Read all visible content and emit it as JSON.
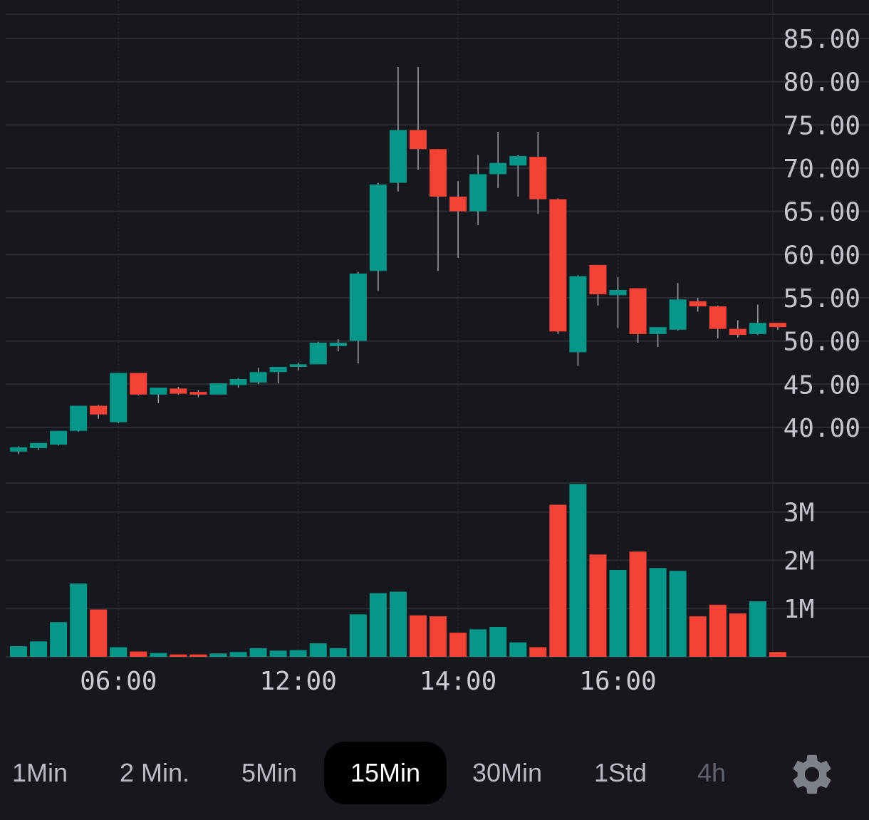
{
  "colors": {
    "background": "#17181d",
    "grid": "#2b2d33",
    "up": "#05968a",
    "down": "#f44336",
    "wick": "#9ea3aa",
    "axis_text": "#c3c6cc",
    "time_text": "#c9ccd2",
    "active_tab_bg": "#000000"
  },
  "chart_data": {
    "type": "candlestick",
    "price_axis": {
      "ylim": [
        33.4,
        87.8
      ],
      "ticks": [
        "85.00",
        "80.00",
        "75.00",
        "70.00",
        "65.00",
        "60.00",
        "55.00",
        "50.00",
        "45.00",
        "40.00"
      ]
    },
    "volume_axis": {
      "ylim": [
        0,
        3.6
      ],
      "ticks": [
        "3M",
        "2M",
        "1M"
      ]
    },
    "time_axis": {
      "ticks": [
        {
          "label": "06:00",
          "index": 5
        },
        {
          "label": "12:00",
          "index": 14
        },
        {
          "label": "14:00",
          "index": 22
        },
        {
          "label": "16:00",
          "index": 30
        }
      ]
    },
    "candles": [
      {
        "o": 37.2,
        "h": 37.8,
        "l": 36.9,
        "c": 37.7,
        "v": 0.22
      },
      {
        "o": 37.6,
        "h": 38.2,
        "l": 37.4,
        "c": 38.2,
        "v": 0.32
      },
      {
        "o": 38.0,
        "h": 39.6,
        "l": 37.9,
        "c": 39.6,
        "v": 0.72
      },
      {
        "o": 39.6,
        "h": 42.5,
        "l": 39.5,
        "c": 42.5,
        "v": 1.52
      },
      {
        "o": 42.5,
        "h": 42.6,
        "l": 41.0,
        "c": 41.5,
        "v": 0.98
      },
      {
        "o": 40.6,
        "h": 46.3,
        "l": 40.5,
        "c": 46.3,
        "v": 0.2
      },
      {
        "o": 46.3,
        "h": 46.3,
        "l": 43.7,
        "c": 43.8,
        "v": 0.11
      },
      {
        "o": 43.8,
        "h": 44.6,
        "l": 42.8,
        "c": 44.6,
        "v": 0.08
      },
      {
        "o": 44.5,
        "h": 44.7,
        "l": 43.8,
        "c": 43.9,
        "v": 0.05
      },
      {
        "o": 44.1,
        "h": 44.3,
        "l": 43.5,
        "c": 43.8,
        "v": 0.05
      },
      {
        "o": 43.8,
        "h": 45.1,
        "l": 43.8,
        "c": 45.1,
        "v": 0.07
      },
      {
        "o": 44.9,
        "h": 45.7,
        "l": 44.6,
        "c": 45.6,
        "v": 0.1
      },
      {
        "o": 45.2,
        "h": 46.9,
        "l": 45.0,
        "c": 46.4,
        "v": 0.18
      },
      {
        "o": 46.4,
        "h": 46.7,
        "l": 45.1,
        "c": 47.0,
        "v": 0.13
      },
      {
        "o": 47.0,
        "h": 47.5,
        "l": 46.6,
        "c": 47.3,
        "v": 0.14
      },
      {
        "o": 47.3,
        "h": 49.9,
        "l": 47.3,
        "c": 49.8,
        "v": 0.28
      },
      {
        "o": 49.4,
        "h": 50.2,
        "l": 48.8,
        "c": 49.8,
        "v": 0.18
      },
      {
        "o": 50.0,
        "h": 58.0,
        "l": 47.4,
        "c": 57.8,
        "v": 0.88
      },
      {
        "o": 58.1,
        "h": 68.3,
        "l": 55.8,
        "c": 68.1,
        "v": 1.32
      },
      {
        "o": 68.3,
        "h": 81.7,
        "l": 67.3,
        "c": 74.4,
        "v": 1.35
      },
      {
        "o": 74.4,
        "h": 81.7,
        "l": 69.8,
        "c": 72.2,
        "v": 0.86
      },
      {
        "o": 72.2,
        "h": 72.2,
        "l": 58.1,
        "c": 66.7,
        "v": 0.84
      },
      {
        "o": 66.7,
        "h": 68.5,
        "l": 59.6,
        "c": 65.0,
        "v": 0.5
      },
      {
        "o": 65.0,
        "h": 71.5,
        "l": 63.4,
        "c": 69.3,
        "v": 0.57
      },
      {
        "o": 69.3,
        "h": 74.2,
        "l": 67.7,
        "c": 70.6,
        "v": 0.62
      },
      {
        "o": 70.3,
        "h": 71.5,
        "l": 66.7,
        "c": 71.4,
        "v": 0.3
      },
      {
        "o": 71.3,
        "h": 74.2,
        "l": 64.7,
        "c": 66.4,
        "v": 0.2
      },
      {
        "o": 66.4,
        "h": 66.5,
        "l": 50.8,
        "c": 51.1,
        "v": 3.15
      },
      {
        "o": 48.7,
        "h": 57.6,
        "l": 47.1,
        "c": 57.5,
        "v": 3.58
      },
      {
        "o": 58.8,
        "h": 58.8,
        "l": 54.1,
        "c": 55.4,
        "v": 2.12
      },
      {
        "o": 55.3,
        "h": 57.4,
        "l": 51.5,
        "c": 55.9,
        "v": 1.8
      },
      {
        "o": 56.1,
        "h": 56.1,
        "l": 49.8,
        "c": 50.8,
        "v": 2.18
      },
      {
        "o": 50.8,
        "h": 51.6,
        "l": 49.3,
        "c": 51.6,
        "v": 1.84
      },
      {
        "o": 51.3,
        "h": 56.7,
        "l": 51.2,
        "c": 54.8,
        "v": 1.78
      },
      {
        "o": 54.6,
        "h": 55.0,
        "l": 53.4,
        "c": 54.0,
        "v": 0.84
      },
      {
        "o": 54.0,
        "h": 54.1,
        "l": 50.3,
        "c": 51.4,
        "v": 1.08
      },
      {
        "o": 51.4,
        "h": 52.4,
        "l": 50.4,
        "c": 50.7,
        "v": 0.9
      },
      {
        "o": 50.8,
        "h": 54.2,
        "l": 50.7,
        "c": 52.1,
        "v": 1.15
      },
      {
        "o": 52.1,
        "h": 52.1,
        "l": 51.3,
        "c": 51.6,
        "v": 0.1
      }
    ]
  },
  "timeframes": [
    {
      "label": "1Min",
      "active": false,
      "disabled": false
    },
    {
      "label": "2 Min.",
      "active": false,
      "disabled": false
    },
    {
      "label": "5Min",
      "active": false,
      "disabled": false
    },
    {
      "label": "15Min",
      "active": true,
      "disabled": false
    },
    {
      "label": "30Min",
      "active": false,
      "disabled": false
    },
    {
      "label": "1Std",
      "active": false,
      "disabled": false
    },
    {
      "label": "4h",
      "active": false,
      "disabled": true
    }
  ],
  "settings": {
    "icon": "gear-icon"
  }
}
